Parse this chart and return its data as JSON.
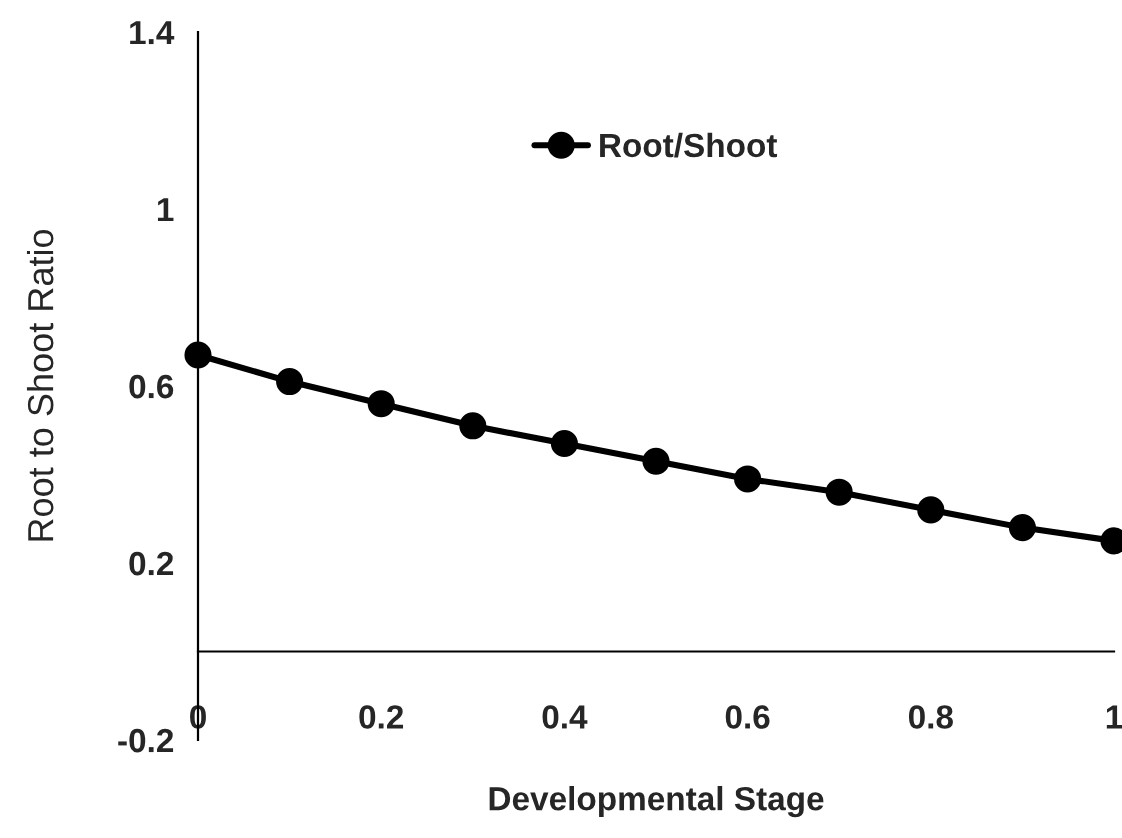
{
  "chart_data": {
    "type": "line",
    "xlabel": "Developmental Stage",
    "ylabel": "Root to Shoot Ratio",
    "x": [
      0,
      0.1,
      0.2,
      0.3,
      0.4,
      0.5,
      0.6,
      0.7,
      0.8,
      0.9,
      1
    ],
    "series": [
      {
        "name": "Root/Shoot",
        "color": "#000000",
        "values": [
          0.67,
          0.61,
          0.56,
          0.51,
          0.47,
          0.43,
          0.39,
          0.36,
          0.32,
          0.28,
          0.25
        ]
      }
    ],
    "xlim": [
      0,
      1
    ],
    "xticks": [
      0,
      0.2,
      0.4,
      0.6,
      0.8,
      1
    ],
    "ylim": [
      -0.2,
      1.4
    ],
    "yticks": [
      -0.2,
      0.2,
      0.6,
      1,
      1.4
    ],
    "marker": "circle",
    "line_style": "solid",
    "legend": "top",
    "grid": false
  }
}
